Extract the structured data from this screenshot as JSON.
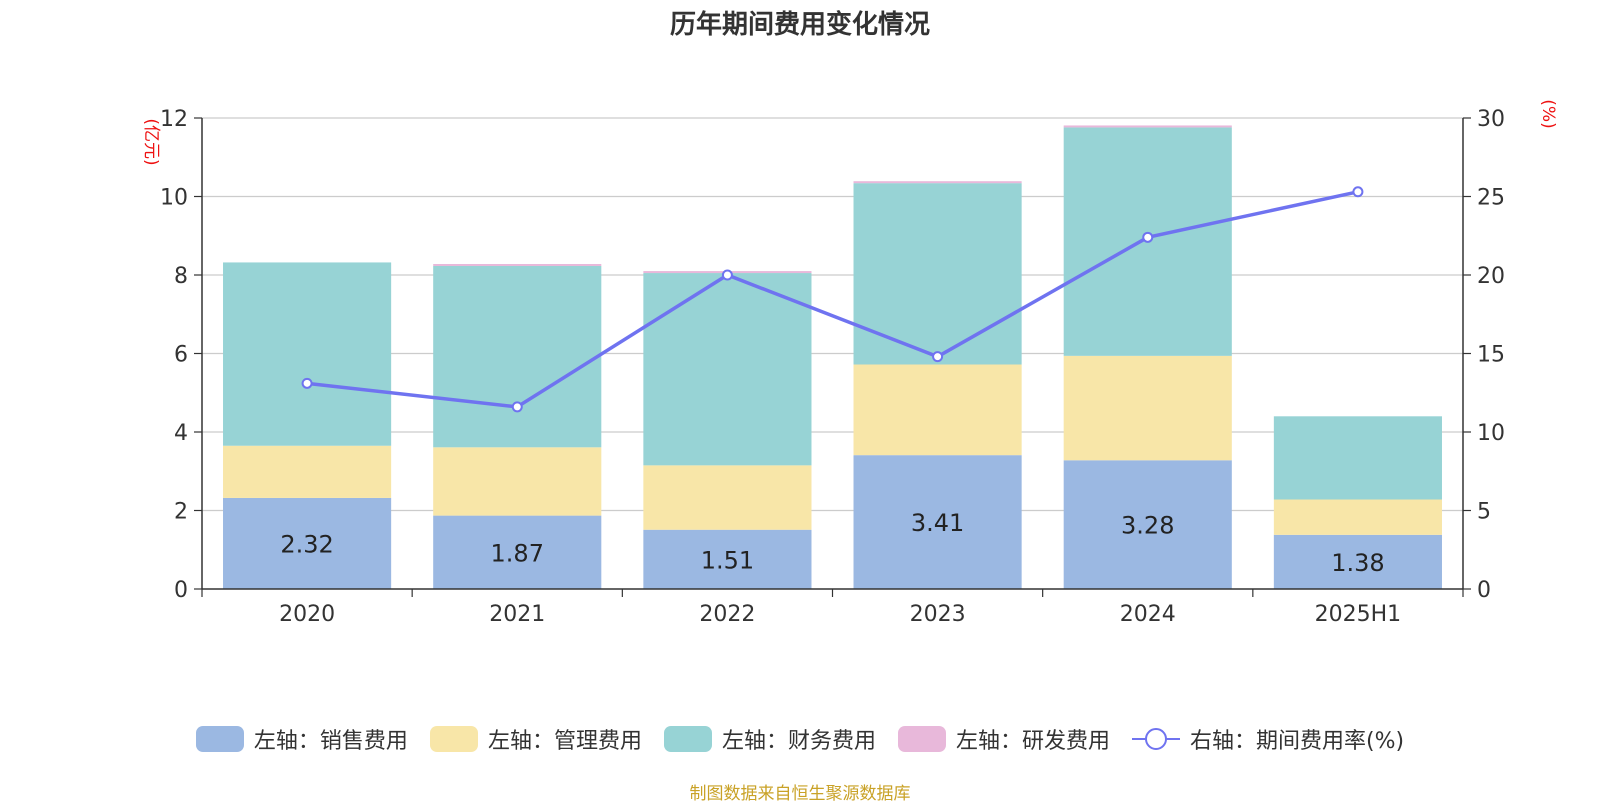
{
  "chart_data": {
    "type": "bar",
    "stacked": true,
    "title": "历年期间费用变化情况",
    "categories": [
      "2020",
      "2021",
      "2022",
      "2023",
      "2024",
      "2025H1"
    ],
    "left_axis": {
      "unit_label": "(亿元)",
      "ylim": [
        0,
        12
      ],
      "ticks": [
        "0",
        "2",
        "4",
        "6",
        "8",
        "10",
        "12"
      ]
    },
    "right_axis": {
      "unit_label": "(%)",
      "ylim": [
        0,
        30
      ],
      "ticks": [
        "0",
        "5",
        "10",
        "15",
        "20",
        "25",
        "30"
      ]
    },
    "series": [
      {
        "name": "左轴：销售费用",
        "axis": "left",
        "type": "bar",
        "color": "#9bb8e2",
        "values": [
          2.32,
          1.87,
          1.51,
          3.41,
          3.28,
          1.38
        ],
        "data_labels": [
          "2.32",
          "1.87",
          "1.51",
          "3.41",
          "3.28",
          "1.38"
        ]
      },
      {
        "name": "左轴：管理费用",
        "axis": "left",
        "type": "bar",
        "color": "#f8e6a8",
        "values": [
          1.33,
          1.74,
          1.64,
          2.31,
          2.66,
          0.9
        ]
      },
      {
        "name": "左轴：财务费用",
        "axis": "left",
        "type": "bar",
        "color": "#97d3d5",
        "values": [
          4.67,
          4.62,
          4.9,
          4.62,
          5.82,
          2.12
        ]
      },
      {
        "name": "左轴：研发费用",
        "axis": "left",
        "type": "bar",
        "color": "#e8b8da",
        "values": [
          0.0,
          0.05,
          0.05,
          0.05,
          0.05,
          0.0
        ]
      },
      {
        "name": "右轴：期间费用率(%)",
        "axis": "right",
        "type": "line",
        "color": "#6f73f0",
        "values": [
          13.1,
          11.6,
          20.0,
          14.8,
          22.4,
          25.3
        ]
      }
    ],
    "grid": true,
    "legend_position": "bottom"
  },
  "footer": {
    "source": "制图数据来自恒生聚源数据库"
  }
}
